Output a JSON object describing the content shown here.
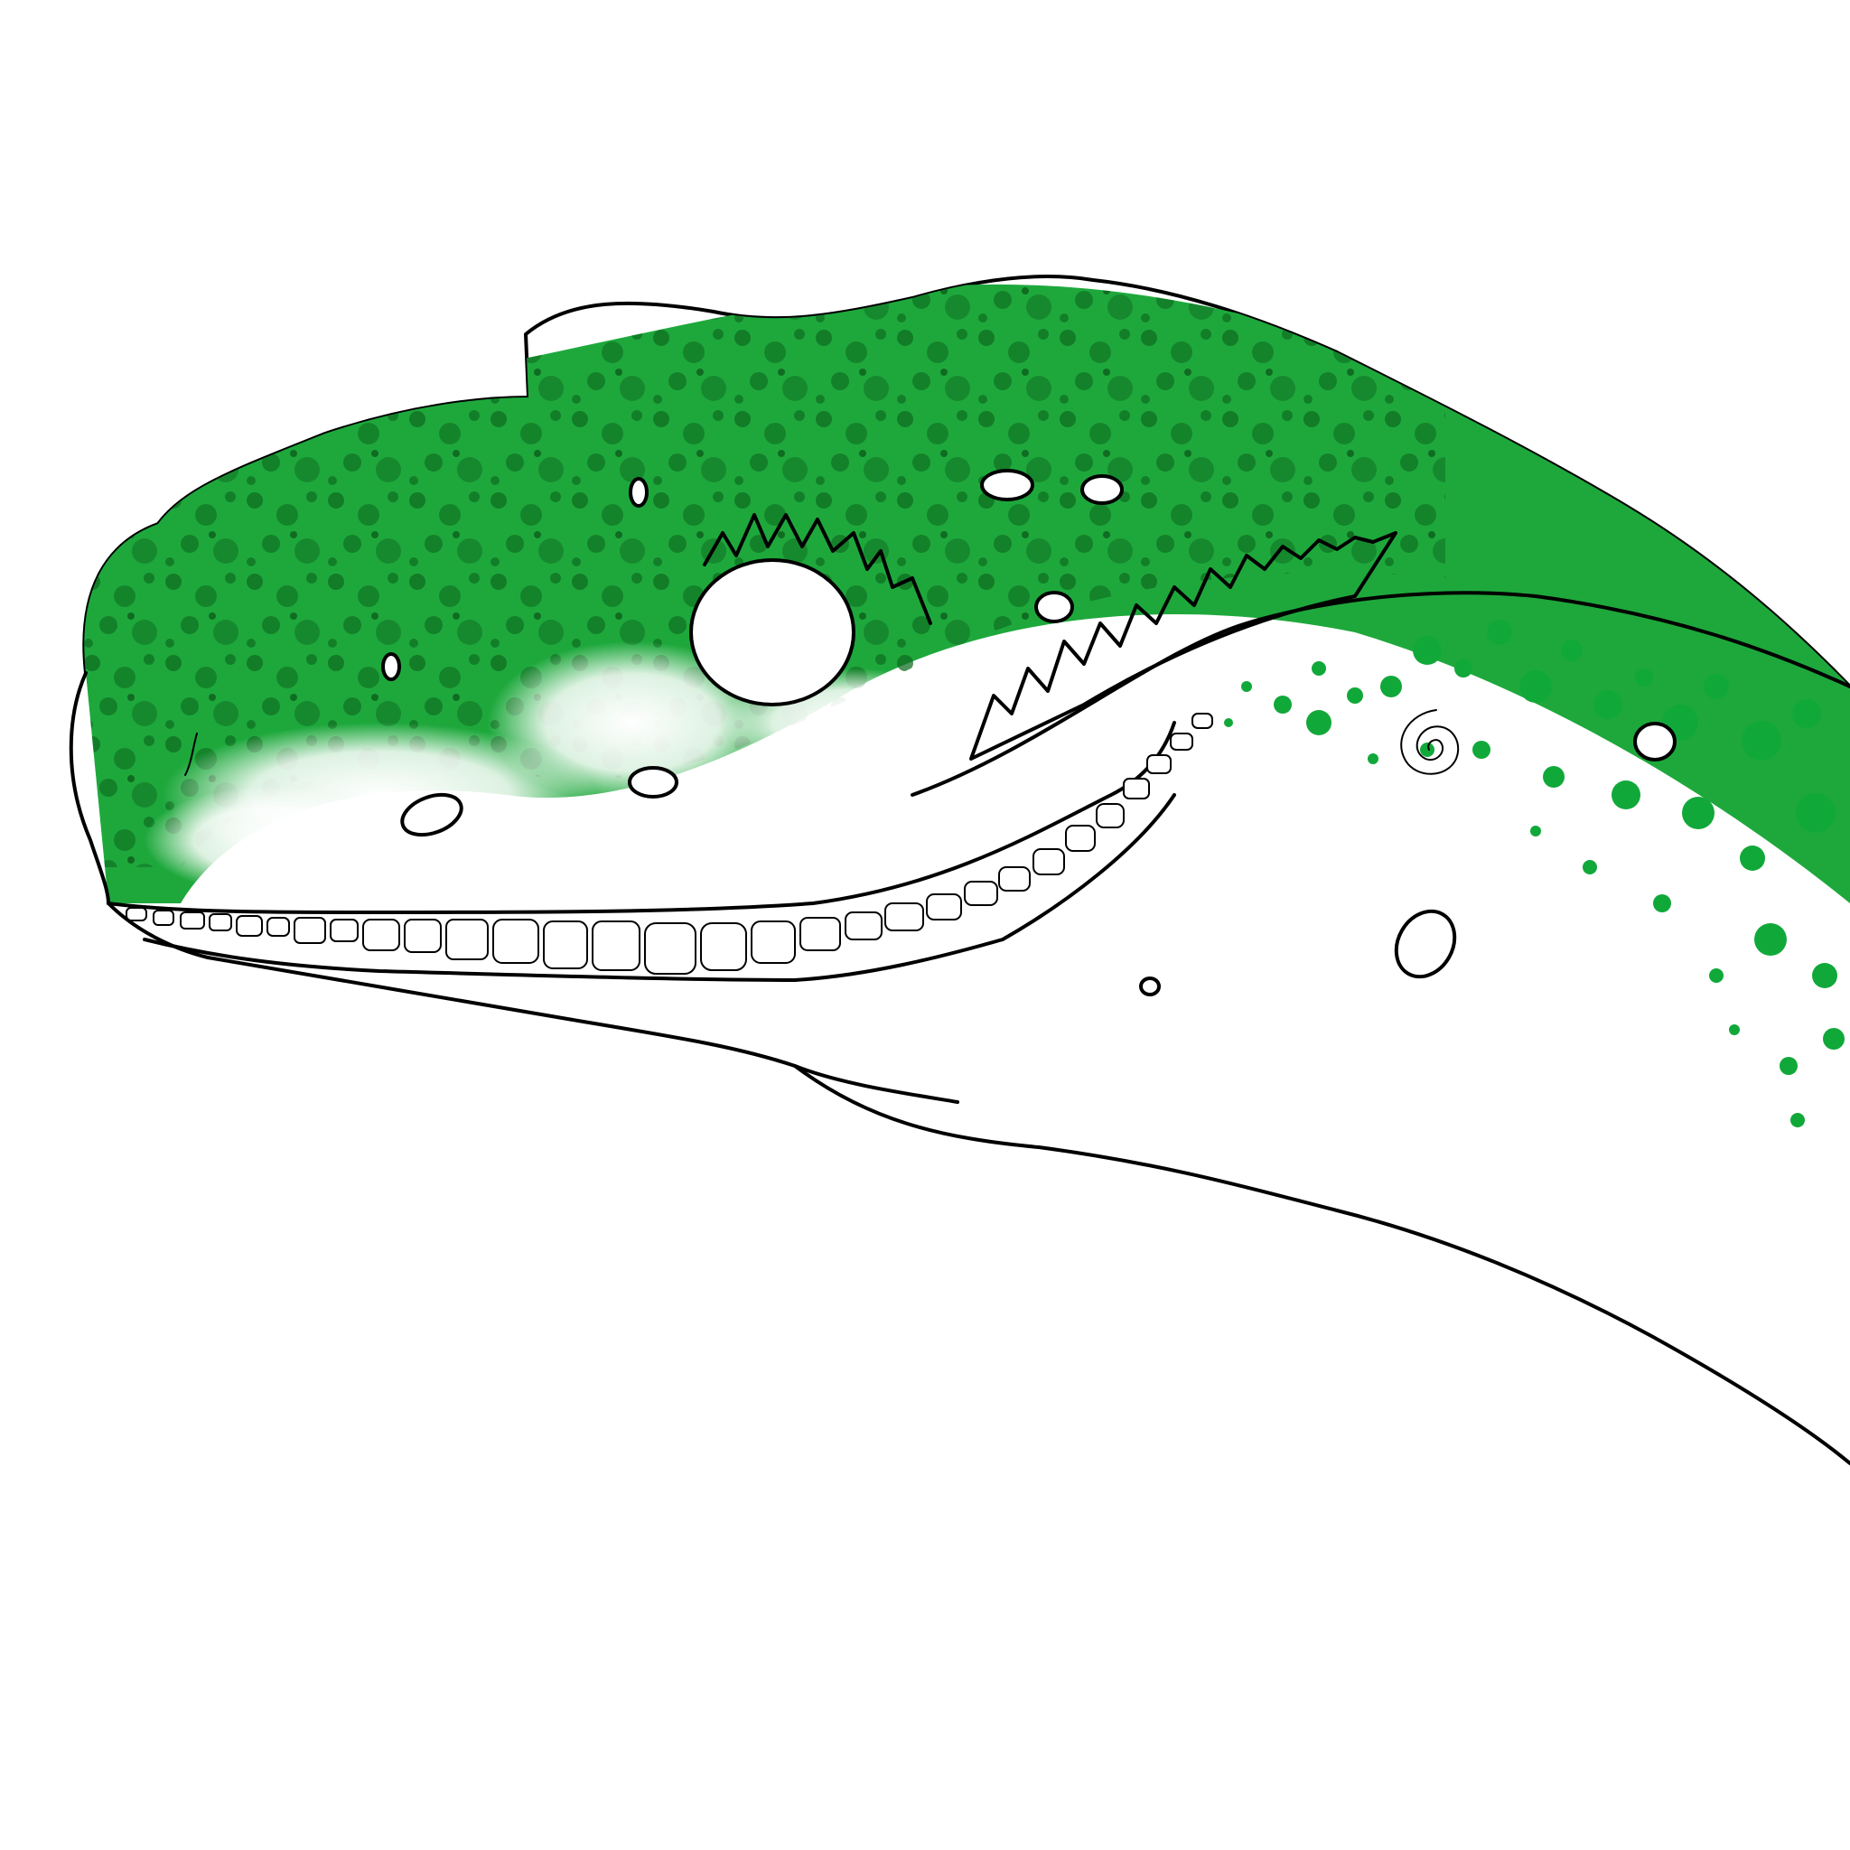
{
  "illustration": {
    "subject": "dinosaur-head-profile",
    "colors": {
      "background": "#ffffff",
      "skin_base": "#ffffff",
      "skin_light_green": "#1ea83c",
      "skin_mid_green": "#17a033",
      "skin_dark_green": "#0d6b1f",
      "neck_speckle": "#11a83a",
      "outline": "#000000"
    },
    "icons": [
      "spiral-mark-icon"
    ]
  }
}
